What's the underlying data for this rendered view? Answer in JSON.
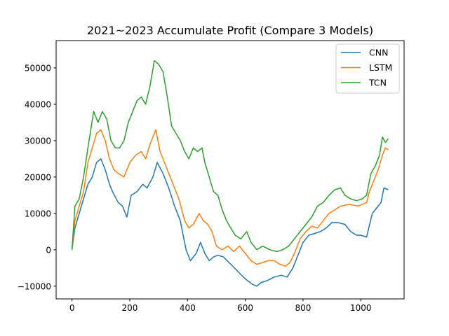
{
  "chart_data": {
    "type": "line",
    "title": "2021~2023 Accumulate Profit (Compare 3 Models)",
    "xlabel": "",
    "ylabel": "",
    "xlim": [
      -55,
      1150
    ],
    "ylim": [
      -13500,
      57500
    ],
    "xticks": [
      0,
      200,
      400,
      600,
      800,
      1000
    ],
    "yticks": [
      -10000,
      0,
      10000,
      20000,
      30000,
      40000,
      50000
    ],
    "grid": false,
    "legend_position": "top-right",
    "series": [
      {
        "name": "CNN",
        "color": "#1f77b4",
        "points": [
          [
            0,
            0
          ],
          [
            10,
            6000
          ],
          [
            25,
            10000
          ],
          [
            40,
            14000
          ],
          [
            55,
            18000
          ],
          [
            70,
            20000
          ],
          [
            85,
            24000
          ],
          [
            100,
            25000
          ],
          [
            115,
            22000
          ],
          [
            130,
            18000
          ],
          [
            140,
            16000
          ],
          [
            160,
            13000
          ],
          [
            175,
            12000
          ],
          [
            190,
            9000
          ],
          [
            205,
            15000
          ],
          [
            225,
            16000
          ],
          [
            245,
            18000
          ],
          [
            260,
            17000
          ],
          [
            280,
            20000
          ],
          [
            295,
            24000
          ],
          [
            315,
            21000
          ],
          [
            335,
            17000
          ],
          [
            355,
            12000
          ],
          [
            375,
            8000
          ],
          [
            395,
            0
          ],
          [
            410,
            -3000
          ],
          [
            430,
            -1000
          ],
          [
            445,
            2000
          ],
          [
            460,
            -1000
          ],
          [
            475,
            -3000
          ],
          [
            490,
            -2000
          ],
          [
            505,
            -1500
          ],
          [
            525,
            -2000
          ],
          [
            550,
            -4000
          ],
          [
            575,
            -6000
          ],
          [
            600,
            -8000
          ],
          [
            625,
            -9500
          ],
          [
            640,
            -10000
          ],
          [
            655,
            -9000
          ],
          [
            675,
            -8500
          ],
          [
            700,
            -7500
          ],
          [
            725,
            -7000
          ],
          [
            745,
            -7500
          ],
          [
            765,
            -5000
          ],
          [
            780,
            -2000
          ],
          [
            800,
            2000
          ],
          [
            820,
            4000
          ],
          [
            840,
            4500
          ],
          [
            860,
            5000
          ],
          [
            880,
            6000
          ],
          [
            900,
            7500
          ],
          [
            920,
            7500
          ],
          [
            945,
            7000
          ],
          [
            965,
            5000
          ],
          [
            985,
            4000
          ],
          [
            1000,
            4000
          ],
          [
            1020,
            3500
          ],
          [
            1040,
            10000
          ],
          [
            1055,
            11500
          ],
          [
            1070,
            13000
          ],
          [
            1080,
            17000
          ],
          [
            1095,
            16500
          ]
        ]
      },
      {
        "name": "LSTM",
        "color": "#ff7f0e",
        "points": [
          [
            0,
            0
          ],
          [
            10,
            8000
          ],
          [
            25,
            12000
          ],
          [
            40,
            16000
          ],
          [
            55,
            24000
          ],
          [
            70,
            28000
          ],
          [
            85,
            32000
          ],
          [
            100,
            33000
          ],
          [
            115,
            30000
          ],
          [
            130,
            25000
          ],
          [
            145,
            22000
          ],
          [
            160,
            21000
          ],
          [
            180,
            20000
          ],
          [
            200,
            24000
          ],
          [
            220,
            26000
          ],
          [
            240,
            27000
          ],
          [
            255,
            25000
          ],
          [
            270,
            29000
          ],
          [
            290,
            33000
          ],
          [
            305,
            27000
          ],
          [
            320,
            24000
          ],
          [
            335,
            21000
          ],
          [
            350,
            18000
          ],
          [
            370,
            14000
          ],
          [
            390,
            8000
          ],
          [
            405,
            6000
          ],
          [
            420,
            7000
          ],
          [
            440,
            10000
          ],
          [
            455,
            8000
          ],
          [
            470,
            7000
          ],
          [
            485,
            5000
          ],
          [
            500,
            1000
          ],
          [
            520,
            0
          ],
          [
            540,
            1000
          ],
          [
            560,
            -500
          ],
          [
            580,
            1000
          ],
          [
            600,
            -1000
          ],
          [
            620,
            -3000
          ],
          [
            640,
            -4000
          ],
          [
            660,
            -3500
          ],
          [
            680,
            -3000
          ],
          [
            700,
            -3000
          ],
          [
            720,
            -4000
          ],
          [
            740,
            -4500
          ],
          [
            755,
            -3500
          ],
          [
            770,
            -1000
          ],
          [
            790,
            3000
          ],
          [
            810,
            5000
          ],
          [
            830,
            6500
          ],
          [
            850,
            6000
          ],
          [
            870,
            8000
          ],
          [
            890,
            10000
          ],
          [
            910,
            11000
          ],
          [
            930,
            12000
          ],
          [
            960,
            12500
          ],
          [
            990,
            12000
          ],
          [
            1005,
            12500
          ],
          [
            1020,
            13000
          ],
          [
            1030,
            16000
          ],
          [
            1045,
            19000
          ],
          [
            1060,
            22000
          ],
          [
            1075,
            26000
          ],
          [
            1085,
            28000
          ],
          [
            1095,
            27500
          ]
        ]
      },
      {
        "name": "TCN",
        "color": "#2ca02c",
        "points": [
          [
            0,
            0
          ],
          [
            10,
            12000
          ],
          [
            25,
            14000
          ],
          [
            40,
            20000
          ],
          [
            55,
            28000
          ],
          [
            65,
            33000
          ],
          [
            75,
            38000
          ],
          [
            90,
            35000
          ],
          [
            105,
            38000
          ],
          [
            120,
            36000
          ],
          [
            135,
            30000
          ],
          [
            150,
            28000
          ],
          [
            165,
            28000
          ],
          [
            180,
            30000
          ],
          [
            195,
            35000
          ],
          [
            210,
            38000
          ],
          [
            225,
            41000
          ],
          [
            240,
            42000
          ],
          [
            255,
            40000
          ],
          [
            270,
            45000
          ],
          [
            285,
            52000
          ],
          [
            300,
            51000
          ],
          [
            315,
            49000
          ],
          [
            330,
            42000
          ],
          [
            345,
            34000
          ],
          [
            360,
            32000
          ],
          [
            375,
            30000
          ],
          [
            390,
            27000
          ],
          [
            405,
            25000
          ],
          [
            420,
            28000
          ],
          [
            435,
            27000
          ],
          [
            450,
            28000
          ],
          [
            460,
            24000
          ],
          [
            475,
            20000
          ],
          [
            490,
            16000
          ],
          [
            505,
            15000
          ],
          [
            520,
            11000
          ],
          [
            535,
            8000
          ],
          [
            550,
            6000
          ],
          [
            565,
            4000
          ],
          [
            585,
            3000
          ],
          [
            605,
            5000
          ],
          [
            620,
            2000
          ],
          [
            640,
            0
          ],
          [
            660,
            1000
          ],
          [
            685,
            0
          ],
          [
            710,
            -500
          ],
          [
            730,
            0
          ],
          [
            750,
            1000
          ],
          [
            770,
            3000
          ],
          [
            790,
            5000
          ],
          [
            810,
            7000
          ],
          [
            830,
            9000
          ],
          [
            850,
            12000
          ],
          [
            870,
            13000
          ],
          [
            890,
            15000
          ],
          [
            910,
            16500
          ],
          [
            930,
            17000
          ],
          [
            945,
            15000
          ],
          [
            965,
            14000
          ],
          [
            985,
            13500
          ],
          [
            1005,
            14000
          ],
          [
            1020,
            15000
          ],
          [
            1035,
            21000
          ],
          [
            1050,
            23000
          ],
          [
            1065,
            26000
          ],
          [
            1075,
            31000
          ],
          [
            1085,
            29500
          ],
          [
            1095,
            30500
          ]
        ]
      }
    ]
  }
}
